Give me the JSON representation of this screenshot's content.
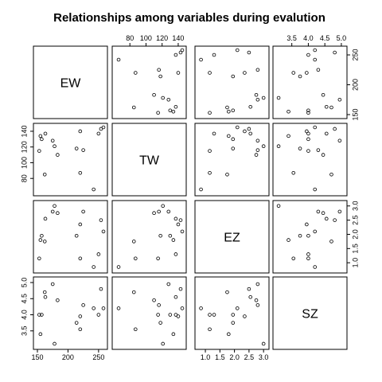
{
  "chart_data": {
    "type": "scatter",
    "chart_kind": "scatterplot-matrix",
    "title": "Relationships among variables during evalution",
    "variables": [
      {
        "name": "EW",
        "range": [
          150,
          258
        ],
        "ticks": [
          150,
          200,
          250
        ],
        "tick_labels": [
          "150",
          "200",
          "250"
        ]
      },
      {
        "name": "TW",
        "range": [
          63,
          145
        ],
        "ticks": [
          80,
          100,
          120,
          140
        ],
        "tick_labels": [
          "80",
          "100",
          "120",
          "140"
        ]
      },
      {
        "name": "EZ",
        "range": [
          0.78,
          3.05
        ],
        "ticks": [
          1.0,
          1.5,
          2.0,
          2.5,
          3.0
        ],
        "tick_labels": [
          "1.0",
          "1.5",
          "2.0",
          "2.5",
          "3.0"
        ]
      },
      {
        "name": "SZ",
        "range": [
          3.05,
          5.05
        ],
        "ticks": [
          3.5,
          4.0,
          4.5,
          5.0
        ],
        "tick_labels": [
          "3.5",
          "4.0",
          "4.5",
          "5.0"
        ]
      }
    ],
    "observations": [
      {
        "EW": 258,
        "TW": 145,
        "EZ": 2.1,
        "SZ": 4.2
      },
      {
        "EW": 254,
        "TW": 143,
        "EZ": 2.5,
        "SZ": 4.8
      },
      {
        "EW": 250,
        "TW": 137,
        "EZ": 1.3,
        "SZ": 4.0
      },
      {
        "EW": 242,
        "TW": 66,
        "EZ": 0.85,
        "SZ": 4.2
      },
      {
        "EW": 225,
        "TW": 116,
        "EZ": 2.8,
        "SZ": 4.3
      },
      {
        "EW": 220,
        "TW": 87,
        "EZ": 1.15,
        "SZ": 3.55
      },
      {
        "EW": 214,
        "TW": 118,
        "EZ": 1.95,
        "SZ": 3.75
      },
      {
        "EW": 183,
        "TW": 110,
        "EZ": 2.75,
        "SZ": 4.45
      },
      {
        "EW": 178,
        "TW": 121,
        "EZ": 3.0,
        "SZ": 3.1
      },
      {
        "EW": 175,
        "TW": 128,
        "EZ": 2.8,
        "SZ": 4.95
      },
      {
        "EW": 163,
        "TW": 137,
        "EZ": 2.55,
        "SZ": 4.55
      },
      {
        "EW": 162,
        "TW": 85,
        "EZ": 1.75,
        "SZ": 4.7
      },
      {
        "EW": 157,
        "TW": 130,
        "EZ": 1.95,
        "SZ": 4.0
      },
      {
        "EW": 155,
        "TW": 134,
        "EZ": 1.8,
        "SZ": 3.4
      },
      {
        "EW": 153,
        "TW": 115,
        "EZ": 1.15,
        "SZ": 4.0
      },
      {
        "EW": 220,
        "TW": 140,
        "EZ": 2.35,
        "SZ": 3.95
      }
    ],
    "grid": false,
    "legend": "none"
  }
}
